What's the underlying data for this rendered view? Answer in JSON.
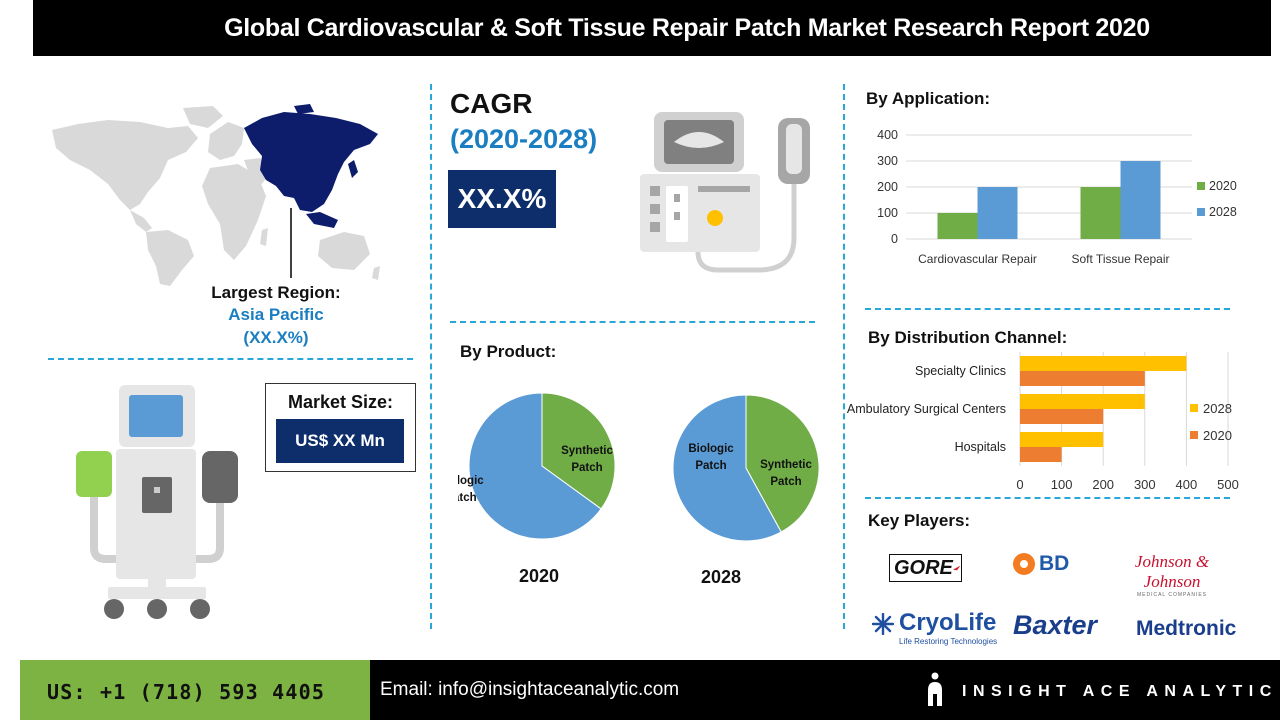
{
  "header": {
    "title": "Global Cardiovascular & Soft Tissue Repair Patch Market Research Report 2020"
  },
  "region": {
    "label": "Largest Region:",
    "name": "Asia Pacific",
    "value": "(XX.X%)"
  },
  "cagr": {
    "title": "CAGR",
    "years": "(2020-2028)",
    "value": "XX.X%"
  },
  "market_size": {
    "label": "Market Size:",
    "value": "US$ XX Mn"
  },
  "by_product": {
    "title": "By Product:"
  },
  "by_application": {
    "title": "By Application:"
  },
  "by_distribution": {
    "title": "By Distribution Channel:"
  },
  "key_players": {
    "title": "Key Players:",
    "logos": [
      "GORE",
      "BD",
      "Johnson & Johnson",
      "MEDICAL COMPANIES",
      "CryoLife",
      "Life Restoring Technologies",
      "Baxter",
      "Medtronic"
    ]
  },
  "footer": {
    "phone": "US: +1 (718) 593 4405",
    "email": "Email: info@insightaceanalytic.com",
    "brand": "INSIGHT ACE ANALYTIC"
  },
  "colors": {
    "navy": "#0d2e6b",
    "accent_blue": "#1a7ec0",
    "dash_blue": "#2aa7d9",
    "green": "#70ad47",
    "light_blue": "#5b9bd5",
    "yellow": "#ffc000",
    "orange": "#ed7d31",
    "footer_green": "#7cb342",
    "map_grey": "#d9d9d9",
    "map_highlight": "#0d1c6b"
  },
  "icons": [
    "world-map",
    "monitor-device-icon",
    "medical-stand-icon",
    "insight-ace-logo-icon"
  ],
  "chart_data": [
    {
      "type": "pie",
      "title": "2020",
      "categories": [
        "Synthetic Patch",
        "Biologic Patch"
      ],
      "values": [
        35,
        65
      ],
      "colors": [
        "#70ad47",
        "#5b9bd5"
      ],
      "labels": [
        "Synthetic\nPatch",
        "Biologic\nPatch"
      ]
    },
    {
      "type": "pie",
      "title": "2028",
      "categories": [
        "Synthetic Patch",
        "Biologic Patch"
      ],
      "values": [
        42,
        58
      ],
      "colors": [
        "#70ad47",
        "#5b9bd5"
      ],
      "labels": [
        "Synthetic\nPatch",
        "Biologic\nPatch"
      ]
    },
    {
      "type": "bar",
      "categories": [
        "Cardiovascular Repair",
        "Soft Tissue Repair"
      ],
      "series": [
        {
          "name": "2020",
          "values": [
            100,
            200
          ],
          "color": "#70ad47"
        },
        {
          "name": "2028",
          "values": [
            200,
            300
          ],
          "color": "#5b9bd5"
        }
      ],
      "ylim": [
        0,
        400
      ],
      "yticks": [
        0,
        100,
        200,
        300,
        400
      ],
      "grid": true,
      "legend": "right"
    },
    {
      "type": "bar",
      "orientation": "horizontal",
      "categories": [
        "Specialty Clinics",
        "Ambulatory Surgical Centers",
        "Hospitals"
      ],
      "series": [
        {
          "name": "2028",
          "values": [
            400,
            300,
            200
          ],
          "color": "#ffc000"
        },
        {
          "name": "2020",
          "values": [
            300,
            200,
            100
          ],
          "color": "#ed7d31"
        }
      ],
      "xlim": [
        0,
        500
      ],
      "xticks": [
        0,
        100,
        200,
        300,
        400,
        500
      ],
      "grid": true,
      "legend": "right"
    }
  ]
}
